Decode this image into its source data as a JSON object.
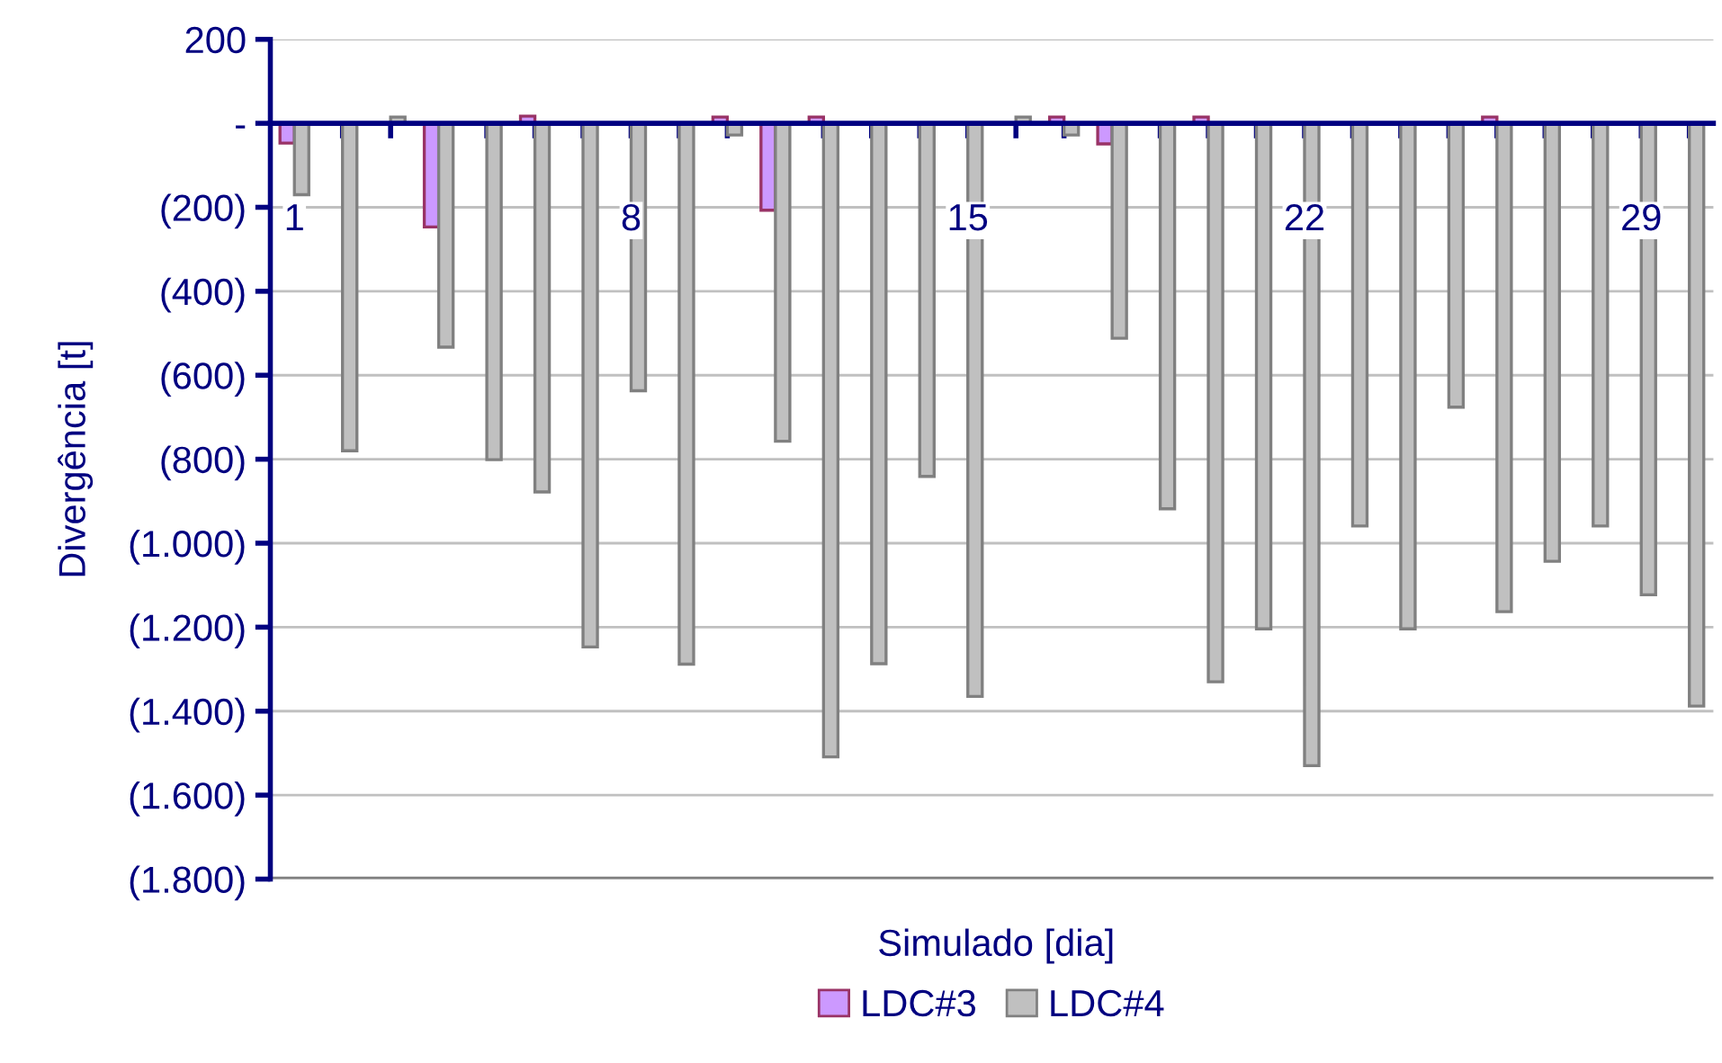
{
  "chart_data": {
    "type": "bar",
    "xlabel": "Simulado [dia]",
    "ylabel": "Divergência [t]",
    "categories": [
      "1",
      null,
      null,
      null,
      null,
      null,
      null,
      "8",
      null,
      null,
      null,
      null,
      null,
      null,
      "15",
      null,
      null,
      null,
      null,
      null,
      null,
      "22",
      null,
      null,
      null,
      null,
      null,
      null,
      "29",
      null
    ],
    "series": [
      {
        "name": "LDC#3",
        "color": "#cc99ff",
        "values": [
          -47,
          null,
          null,
          -247,
          null,
          17,
          null,
          null,
          null,
          15,
          -207,
          15,
          null,
          null,
          null,
          null,
          15,
          -49,
          null,
          15,
          null,
          null,
          null,
          null,
          null,
          15,
          null,
          null,
          null,
          null
        ]
      },
      {
        "name": "LDC#4",
        "color": "#c0c0c0",
        "values": [
          -170,
          -780,
          15,
          -533,
          -801,
          -878,
          -1247,
          -637,
          -1288,
          -28,
          -757,
          -1509,
          -1287,
          -841,
          -1365,
          15,
          -28,
          -512,
          -918,
          -1330,
          -1204,
          -1530,
          -959,
          -1204,
          -676,
          -1163,
          -1043,
          -959,
          -1123,
          -1388
        ]
      }
    ],
    "ylim": [
      -1800,
      200
    ],
    "yticks": [
      200,
      {
        "value": 0,
        "label": "-"
      },
      {
        "value": -200,
        "label": "(200)"
      },
      {
        "value": -400,
        "label": "(400)"
      },
      {
        "value": -600,
        "label": "(600)"
      },
      {
        "value": -800,
        "label": "(800)"
      },
      {
        "value": -1000,
        "label": "(1.000)"
      },
      {
        "value": -1200,
        "label": "(1.200)"
      },
      {
        "value": -1400,
        "label": "(1.400)"
      },
      {
        "value": -1600,
        "label": "(1.600)"
      },
      {
        "value": -1800,
        "label": "(1.800)"
      }
    ],
    "grid": "y",
    "legend": "bottom"
  }
}
